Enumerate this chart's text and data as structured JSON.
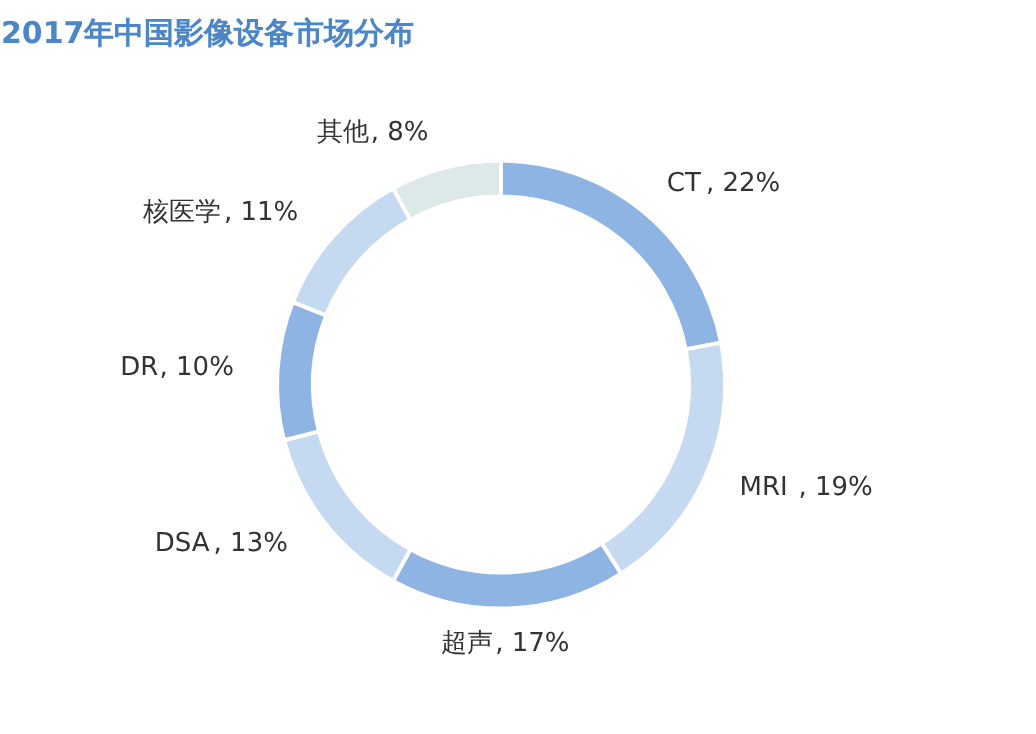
{
  "chart_data": {
    "type": "donut",
    "title": "2017年中国影像设备市场分布",
    "categories": [
      "CT",
      "MRI",
      "超声",
      "DSA",
      "DR",
      "核医学",
      "其他"
    ],
    "values": [
      22,
      19,
      17,
      13,
      10,
      11,
      8
    ],
    "colors": [
      "#8db4e2",
      "#c5d9f1",
      "#8db4e2",
      "#c5d9f1",
      "#8db4e2",
      "#c5d9f1",
      "#dde8e8"
    ],
    "value_labels": [
      ", 22%",
      ", 19%",
      ", 17%",
      ", 13%",
      ", 10%",
      ", 11%",
      ", 8%"
    ]
  }
}
